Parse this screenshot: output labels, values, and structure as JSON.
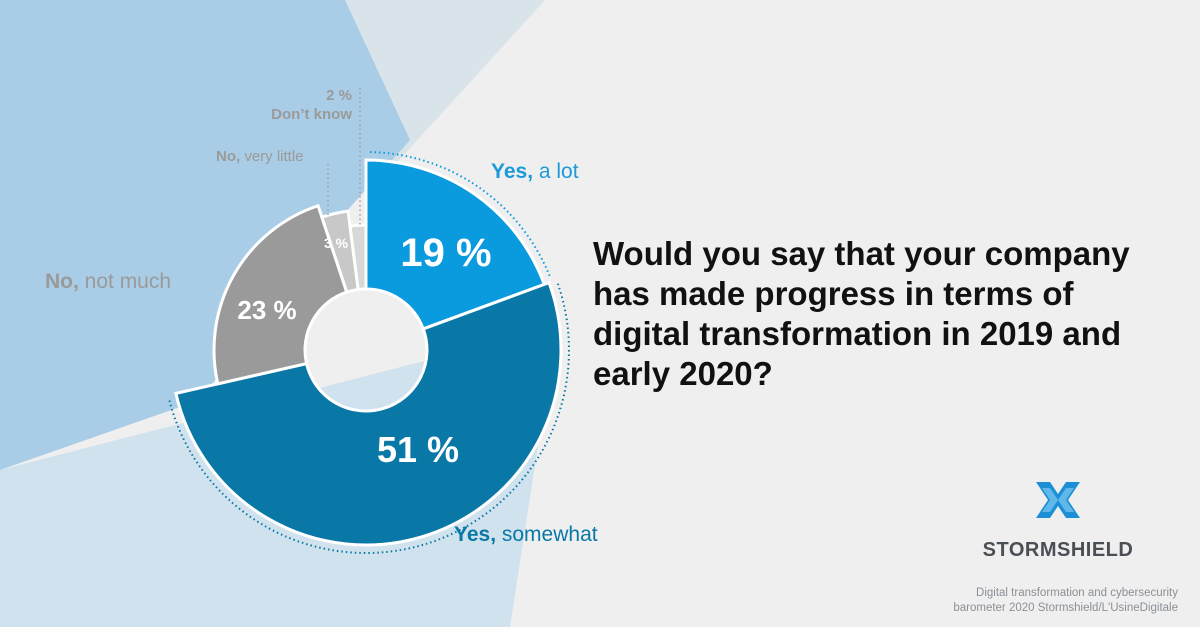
{
  "colors": {
    "background": "#efefef",
    "band_light": "#cfe2ee",
    "band_mid": "#a9cde6",
    "band_top": "#d9e3ea",
    "yes_a_lot": "#0a9ade",
    "yes_somewhat": "#0a78a6",
    "no_not_much": "#9a9a9a",
    "no_very_little": "#c8c8c8",
    "dont_know": "#d8d8d8",
    "question_text": "#111111",
    "logo_blue": "#1d8fd6"
  },
  "question": "Would you say that your company has made progress in terms of digital transformation in 2019 and early 2020?",
  "chart_data": {
    "type": "pie",
    "variant": "donut",
    "unit": "%",
    "slices": [
      {
        "key": "yes_a_lot",
        "value": 19,
        "label": "19 %",
        "callout_bold": "Yes,",
        "callout_rest": " a lot",
        "color": "#0a9ade"
      },
      {
        "key": "yes_somewhat",
        "value": 51,
        "label": "51 %",
        "callout_bold": "Yes,",
        "callout_rest": " somewhat",
        "color": "#0a78a6"
      },
      {
        "key": "no_not_much",
        "value": 23,
        "label": "23 %",
        "callout_bold": "No,",
        "callout_rest": " not much",
        "color": "#9a9a9a"
      },
      {
        "key": "no_very_little",
        "value": 3,
        "label": "3 %",
        "callout_bold": "No,",
        "callout_rest": " very little",
        "color": "#c8c8c8"
      },
      {
        "key": "dont_know",
        "value": 2,
        "label": "2 %",
        "callout_bold": "Don’t know",
        "callout_rest": "",
        "color": "#d8d8d8"
      }
    ]
  },
  "brand": {
    "name": "STORMSHIELD"
  },
  "source": {
    "line1": "Digital transformation and cybersecurity",
    "line2": "barometer 2020 Stormshield/L'UsineDigitale"
  }
}
